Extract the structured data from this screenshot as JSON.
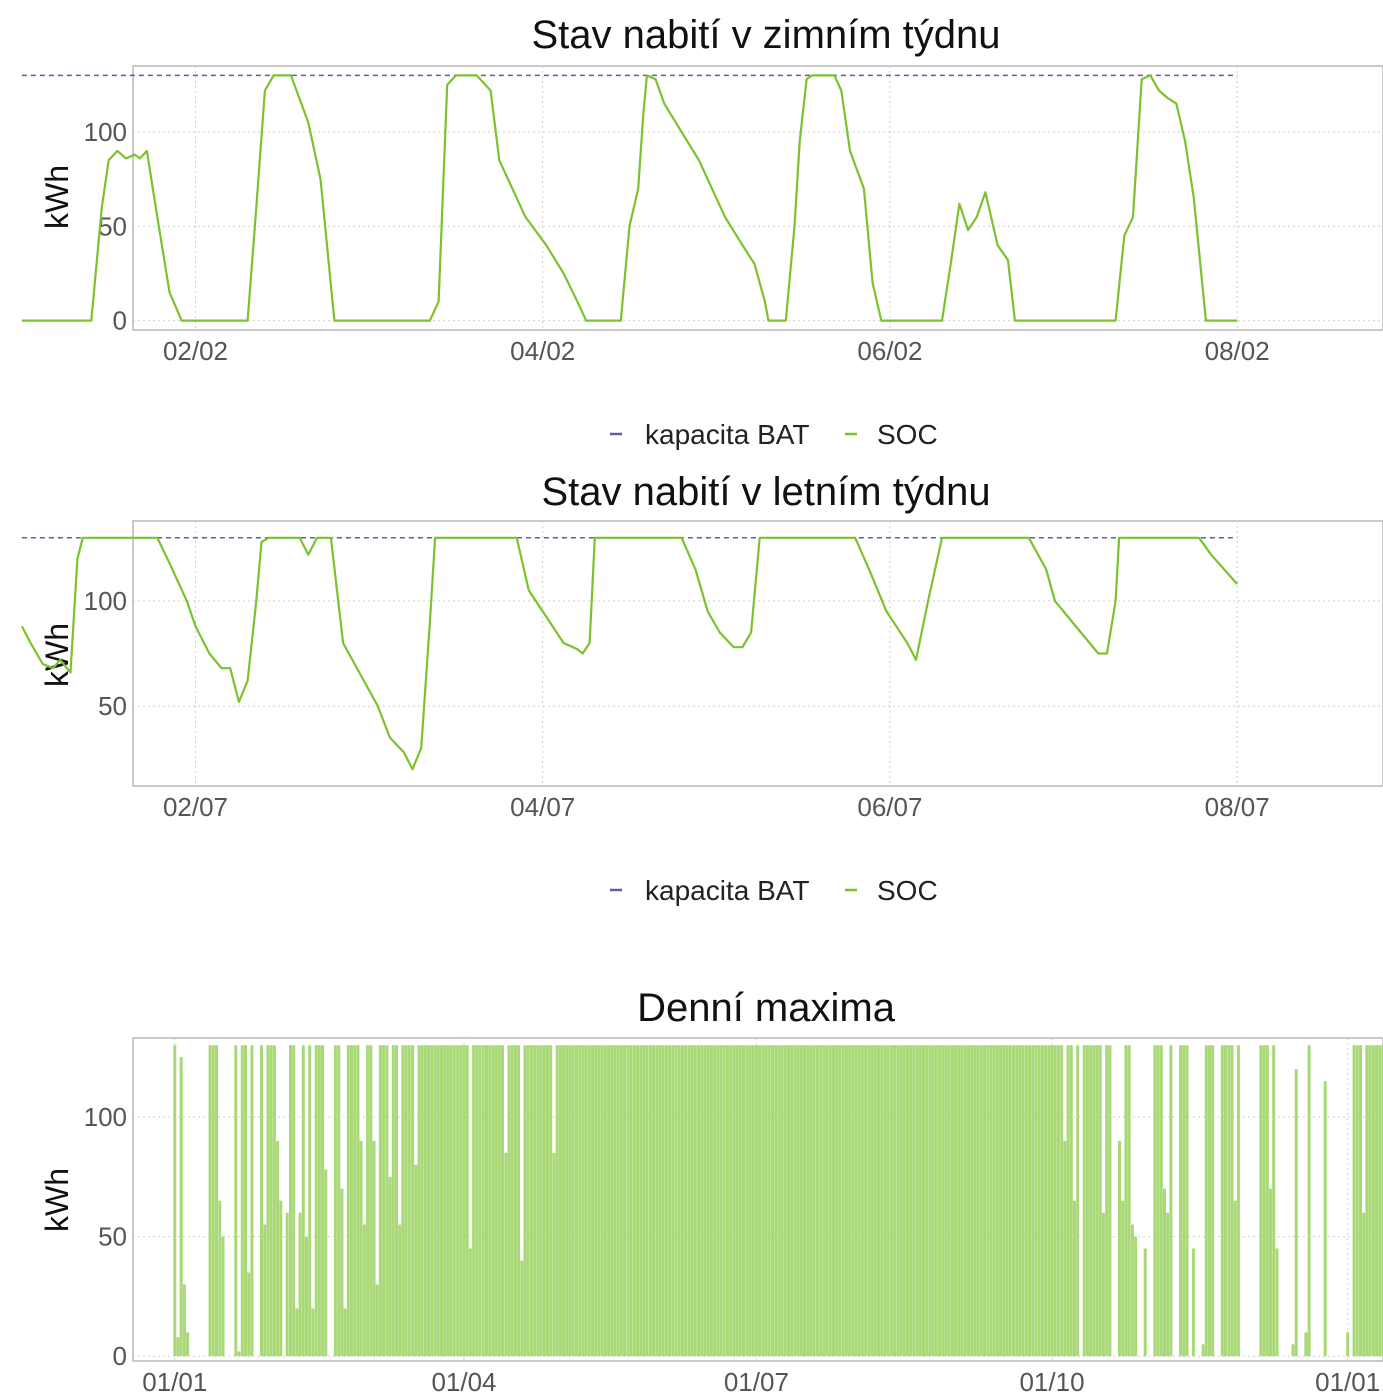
{
  "colors": {
    "capacity": "#5d5ea8",
    "soc": "#7cc12e",
    "bars": "#a9d877",
    "grid": "#d0d0d0",
    "frame": "#b8b8b8"
  },
  "legend": {
    "capacity_label": "kapacita BAT",
    "soc_label": "SOC"
  },
  "chart_data": [
    {
      "type": "line",
      "title": "Stav nabití v zimním týdnu",
      "ylabel": "kWh",
      "xlabel": "",
      "ylim": [
        -5,
        135
      ],
      "x_unit": "days since 01/02 00:00",
      "xlim": [
        0.64,
        7.84
      ],
      "xticks": [
        1,
        3,
        5,
        7
      ],
      "xtick_labels": [
        "02/02",
        "04/02",
        "06/02",
        "08/02"
      ],
      "yticks": [
        0,
        50,
        100
      ],
      "grid": true,
      "legend_position": "bottom",
      "series": [
        {
          "name": "kapacita BAT",
          "style": "dashed",
          "points": [
            [
              0.0,
              130
            ],
            [
              7.0,
              130
            ]
          ]
        },
        {
          "name": "SOC",
          "style": "solid",
          "points": [
            [
              0.0,
              0
            ],
            [
              0.4,
              0
            ],
            [
              0.46,
              60
            ],
            [
              0.5,
              85
            ],
            [
              0.55,
              90
            ],
            [
              0.6,
              86
            ],
            [
              0.65,
              88
            ],
            [
              0.68,
              86
            ],
            [
              0.72,
              90
            ],
            [
              0.78,
              55
            ],
            [
              0.85,
              15
            ],
            [
              0.92,
              0
            ],
            [
              1.3,
              0
            ],
            [
              1.35,
              60
            ],
            [
              1.4,
              122
            ],
            [
              1.45,
              130
            ],
            [
              1.55,
              130
            ],
            [
              1.65,
              105
            ],
            [
              1.72,
              75
            ],
            [
              1.8,
              0
            ],
            [
              2.35,
              0
            ],
            [
              2.4,
              10
            ],
            [
              2.45,
              125
            ],
            [
              2.5,
              130
            ],
            [
              2.62,
              130
            ],
            [
              2.7,
              122
            ],
            [
              2.75,
              85
            ],
            [
              2.8,
              75
            ],
            [
              2.9,
              55
            ],
            [
              3.02,
              40
            ],
            [
              3.12,
              25
            ],
            [
              3.2,
              10
            ],
            [
              3.25,
              0
            ],
            [
              3.45,
              0
            ],
            [
              3.5,
              50
            ],
            [
              3.55,
              70
            ],
            [
              3.58,
              110
            ],
            [
              3.6,
              130
            ],
            [
              3.65,
              128
            ],
            [
              3.7,
              115
            ],
            [
              3.8,
              100
            ],
            [
              3.9,
              85
            ],
            [
              4.05,
              55
            ],
            [
              4.15,
              40
            ],
            [
              4.22,
              30
            ],
            [
              4.28,
              10
            ],
            [
              4.3,
              0
            ],
            [
              4.4,
              0
            ],
            [
              4.45,
              50
            ],
            [
              4.48,
              95
            ],
            [
              4.52,
              128
            ],
            [
              4.55,
              130
            ],
            [
              4.68,
              130
            ],
            [
              4.72,
              122
            ],
            [
              4.77,
              90
            ],
            [
              4.85,
              70
            ],
            [
              4.9,
              20
            ],
            [
              4.95,
              0
            ],
            [
              5.3,
              0
            ],
            [
              5.35,
              30
            ],
            [
              5.4,
              62
            ],
            [
              5.45,
              48
            ],
            [
              5.5,
              55
            ],
            [
              5.55,
              68
            ],
            [
              5.62,
              40
            ],
            [
              5.68,
              32
            ],
            [
              5.72,
              0
            ],
            [
              6.3,
              0
            ],
            [
              6.35,
              45
            ],
            [
              6.4,
              55
            ],
            [
              6.45,
              128
            ],
            [
              6.5,
              130
            ],
            [
              6.55,
              122
            ],
            [
              6.6,
              118
            ],
            [
              6.65,
              115
            ],
            [
              6.7,
              95
            ],
            [
              6.75,
              65
            ],
            [
              6.82,
              0
            ],
            [
              7.0,
              0
            ]
          ]
        }
      ]
    },
    {
      "type": "line",
      "title": "Stav nabití v letním týdnu",
      "ylabel": "kWh",
      "xlabel": "",
      "ylim": [
        12,
        138
      ],
      "x_unit": "days since 01/07 00:00",
      "xlim": [
        0.64,
        7.84
      ],
      "xticks": [
        1,
        3,
        5,
        7
      ],
      "xtick_labels": [
        "02/07",
        "04/07",
        "06/07",
        "08/07"
      ],
      "yticks": [
        50,
        100
      ],
      "grid": true,
      "legend_position": "bottom",
      "series": [
        {
          "name": "kapacita BAT",
          "style": "dashed",
          "points": [
            [
              0.0,
              130
            ],
            [
              7.0,
              130
            ]
          ]
        },
        {
          "name": "SOC",
          "style": "solid",
          "points": [
            [
              0.0,
              88
            ],
            [
              0.05,
              80
            ],
            [
              0.12,
              70
            ],
            [
              0.18,
              68
            ],
            [
              0.22,
              72
            ],
            [
              0.26,
              68
            ],
            [
              0.28,
              66
            ],
            [
              0.32,
              120
            ],
            [
              0.35,
              130
            ],
            [
              0.78,
              130
            ],
            [
              0.85,
              118
            ],
            [
              0.95,
              100
            ],
            [
              1.0,
              88
            ],
            [
              1.08,
              75
            ],
            [
              1.15,
              68
            ],
            [
              1.2,
              68
            ],
            [
              1.25,
              52
            ],
            [
              1.3,
              62
            ],
            [
              1.35,
              100
            ],
            [
              1.38,
              128
            ],
            [
              1.42,
              130
            ],
            [
              1.6,
              130
            ],
            [
              1.65,
              122
            ],
            [
              1.7,
              130
            ],
            [
              1.78,
              130
            ],
            [
              1.85,
              80
            ],
            [
              1.95,
              65
            ],
            [
              2.05,
              50
            ],
            [
              2.12,
              35
            ],
            [
              2.2,
              28
            ],
            [
              2.25,
              20
            ],
            [
              2.3,
              30
            ],
            [
              2.35,
              90
            ],
            [
              2.38,
              130
            ],
            [
              2.85,
              130
            ],
            [
              2.92,
              105
            ],
            [
              3.0,
              95
            ],
            [
              3.12,
              80
            ],
            [
              3.2,
              77
            ],
            [
              3.23,
              75
            ],
            [
              3.27,
              80
            ],
            [
              3.3,
              130
            ],
            [
              3.8,
              130
            ],
            [
              3.88,
              115
            ],
            [
              3.95,
              95
            ],
            [
              4.02,
              85
            ],
            [
              4.1,
              78
            ],
            [
              4.15,
              78
            ],
            [
              4.2,
              85
            ],
            [
              4.25,
              130
            ],
            [
              4.8,
              130
            ],
            [
              4.88,
              115
            ],
            [
              4.98,
              95
            ],
            [
              5.1,
              80
            ],
            [
              5.15,
              72
            ],
            [
              5.22,
              100
            ],
            [
              5.3,
              130
            ],
            [
              5.8,
              130
            ],
            [
              5.9,
              115
            ],
            [
              5.95,
              100
            ],
            [
              6.1,
              85
            ],
            [
              6.2,
              75
            ],
            [
              6.25,
              75
            ],
            [
              6.3,
              100
            ],
            [
              6.32,
              130
            ],
            [
              6.78,
              130
            ],
            [
              6.85,
              122
            ],
            [
              7.0,
              108
            ]
          ]
        }
      ]
    },
    {
      "type": "bar",
      "title": "Denní maxima",
      "ylabel": "kWh",
      "xlabel": "",
      "ylim": [
        -2,
        133
      ],
      "x_unit": "day of year",
      "xlim": [
        -12,
        377
      ],
      "xticks": [
        1,
        91,
        182,
        274,
        366
      ],
      "xtick_labels": [
        "01/01",
        "01/04",
        "01/07",
        "01/10",
        "01/01"
      ],
      "yticks": [
        0,
        50,
        100
      ],
      "grid": true,
      "values": [
        130,
        8,
        125,
        30,
        10,
        0,
        0,
        0,
        0,
        0,
        0,
        130,
        130,
        130,
        65,
        50,
        0,
        0,
        0,
        130,
        2,
        130,
        130,
        35,
        130,
        0,
        0,
        130,
        55,
        130,
        130,
        130,
        90,
        65,
        0,
        60,
        130,
        130,
        20,
        60,
        130,
        50,
        130,
        20,
        130,
        130,
        130,
        78,
        0,
        0,
        130,
        130,
        70,
        20,
        130,
        130,
        130,
        130,
        90,
        55,
        130,
        130,
        90,
        30,
        130,
        130,
        130,
        75,
        130,
        130,
        55,
        130,
        130,
        130,
        130,
        80,
        130,
        130,
        130,
        130,
        130,
        130,
        130,
        130,
        130,
        130,
        130,
        130,
        130,
        130,
        130,
        130,
        45,
        130,
        130,
        130,
        130,
        130,
        130,
        130,
        130,
        130,
        130,
        85,
        130,
        130,
        130,
        130,
        40,
        130,
        130,
        130,
        130,
        130,
        130,
        130,
        130,
        130,
        85,
        130,
        130,
        130,
        130,
        130,
        130,
        130,
        130,
        130,
        130,
        130,
        130,
        130,
        130,
        130,
        130,
        130,
        130,
        130,
        130,
        130,
        130,
        130,
        130,
        130,
        130,
        130,
        130,
        130,
        130,
        130,
        130,
        130,
        130,
        130,
        130,
        130,
        130,
        130,
        130,
        130,
        130,
        130,
        130,
        130,
        130,
        130,
        130,
        130,
        130,
        130,
        130,
        130,
        130,
        130,
        130,
        130,
        130,
        130,
        130,
        130,
        130,
        130,
        130,
        130,
        130,
        130,
        130,
        130,
        130,
        130,
        130,
        130,
        130,
        130,
        130,
        130,
        130,
        130,
        130,
        130,
        130,
        130,
        130,
        130,
        130,
        130,
        130,
        130,
        130,
        130,
        130,
        130,
        130,
        130,
        130,
        130,
        130,
        130,
        130,
        130,
        130,
        130,
        130,
        130,
        130,
        130,
        130,
        130,
        130,
        130,
        130,
        130,
        130,
        130,
        130,
        130,
        130,
        130,
        130,
        130,
        130,
        130,
        130,
        130,
        130,
        130,
        130,
        130,
        130,
        130,
        130,
        130,
        130,
        130,
        130,
        130,
        130,
        130,
        130,
        130,
        130,
        130,
        130,
        130,
        130,
        130,
        130,
        130,
        130,
        130,
        130,
        130,
        130,
        130,
        130,
        130,
        130,
        90,
        130,
        130,
        65,
        130,
        0,
        130,
        130,
        130,
        130,
        130,
        130,
        60,
        130,
        130,
        0,
        0,
        90,
        65,
        130,
        130,
        55,
        50,
        0,
        0,
        45,
        0,
        0,
        130,
        130,
        130,
        70,
        60,
        130,
        0,
        0,
        130,
        130,
        130,
        0,
        45,
        0,
        0,
        5,
        130,
        130,
        130,
        0,
        0,
        130,
        130,
        130,
        130,
        65,
        130,
        0,
        0,
        0,
        0,
        0,
        0,
        130,
        130,
        130,
        70,
        130,
        45,
        0,
        0,
        0,
        0,
        5,
        120,
        0,
        0,
        10,
        130,
        0,
        0,
        0,
        0,
        115,
        0,
        0,
        0,
        0,
        0,
        0,
        10,
        0,
        130,
        130,
        130,
        60,
        130,
        130,
        130,
        130,
        130,
        130
      ]
    }
  ]
}
